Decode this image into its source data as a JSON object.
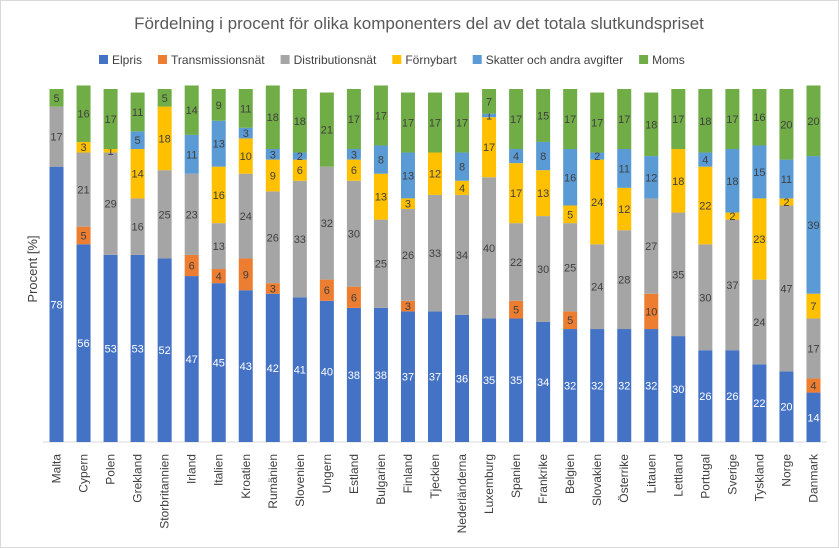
{
  "chart_data": {
    "type": "bar",
    "stacked": true,
    "title": "Fördelning i procent för olika komponenters del av det totala slutkundspriset",
    "xlabel": "",
    "ylabel": "Procent [%]",
    "ylim": [
      0,
      100
    ],
    "legend_position": "top",
    "categories": [
      "Malta",
      "Cypern",
      "Polen",
      "Grekland",
      "Storbritannien",
      "Irland",
      "Italien",
      "Kroatien",
      "Rumänien",
      "Slovenien",
      "Ungern",
      "Estland",
      "Bulgarien",
      "Finland",
      "Tjeckien",
      "Nederländerna",
      "Luxemburg",
      "Spanien",
      "Frankrike",
      "Belgien",
      "Slovakien",
      "Österrike",
      "Litauen",
      "Lettland",
      "Portugal",
      "Sverige",
      "Tyskland",
      "Norge",
      "Danmark"
    ],
    "series": [
      {
        "name": "Elpris",
        "color": "#4472C4",
        "values": [
          78,
          56,
          53,
          53,
          52,
          47,
          45,
          43,
          42,
          41,
          40,
          38,
          38,
          37,
          37,
          36,
          35,
          35,
          34,
          32,
          32,
          32,
          32,
          30,
          26,
          26,
          22,
          20,
          14
        ]
      },
      {
        "name": "Transmissionsnät",
        "color": "#ED7D31",
        "values": [
          0,
          5,
          0,
          0,
          0,
          6,
          4,
          9,
          3,
          0,
          6,
          6,
          0,
          3,
          0,
          0,
          0,
          5,
          0,
          5,
          0,
          0,
          10,
          0,
          0,
          0,
          0,
          0,
          4
        ]
      },
      {
        "name": "Distributionsnät",
        "color": "#A5A5A5",
        "values": [
          17,
          21,
          29,
          16,
          25,
          23,
          13,
          24,
          26,
          33,
          32,
          30,
          25,
          26,
          33,
          34,
          40,
          22,
          30,
          25,
          24,
          28,
          27,
          35,
          30,
          37,
          24,
          47,
          17
        ]
      },
      {
        "name": "Förnybart",
        "color": "#FFC000",
        "values": [
          0,
          3,
          1,
          14,
          18,
          0,
          16,
          10,
          9,
          6,
          0,
          6,
          13,
          3,
          12,
          4,
          17,
          17,
          13,
          5,
          24,
          12,
          0,
          18,
          22,
          2,
          23,
          2,
          7
        ]
      },
      {
        "name": "Skatter och andra avgifter",
        "color": "#5B9BD5",
        "values": [
          0,
          0,
          0,
          5,
          0,
          11,
          13,
          3,
          3,
          2,
          0,
          3,
          8,
          13,
          0,
          8,
          1,
          4,
          8,
          16,
          2,
          11,
          12,
          0,
          4,
          18,
          15,
          11,
          39
        ]
      },
      {
        "name": "Moms",
        "color": "#70AD47",
        "values": [
          5,
          16,
          17,
          11,
          5,
          14,
          9,
          11,
          18,
          18,
          21,
          17,
          17,
          17,
          17,
          17,
          7,
          17,
          15,
          17,
          17,
          17,
          18,
          17,
          18,
          17,
          16,
          20,
          20
        ]
      }
    ]
  }
}
